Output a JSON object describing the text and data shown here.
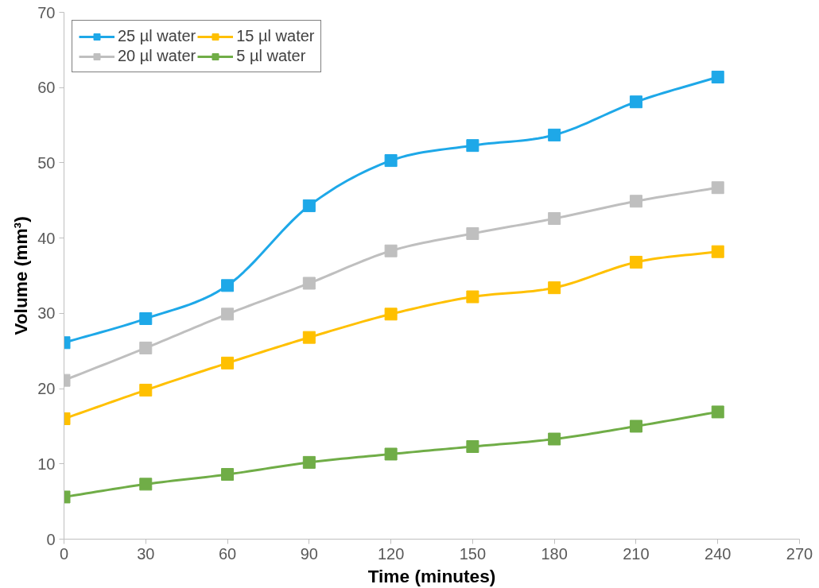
{
  "chart_data": {
    "type": "line",
    "xlabel": "Time (minutes)",
    "ylabel": "Volume (mm³)",
    "x": [
      0,
      30,
      60,
      90,
      120,
      150,
      180,
      210,
      240
    ],
    "series": [
      {
        "name": "25 µl water",
        "color": "#1ea8e8",
        "values": [
          26.1,
          29.3,
          33.7,
          44.3,
          50.3,
          52.3,
          53.7,
          58.1,
          61.4
        ]
      },
      {
        "name": "20 µl water",
        "color": "#bfbfbf",
        "values": [
          21.1,
          25.4,
          29.9,
          34.0,
          38.3,
          40.6,
          42.6,
          44.9,
          46.7
        ]
      },
      {
        "name": "15 µl water",
        "color": "#ffc000",
        "values": [
          16.0,
          19.8,
          23.4,
          26.8,
          29.9,
          32.2,
          33.4,
          36.8,
          38.2
        ]
      },
      {
        "name": "5 µl water",
        "color": "#70ad47",
        "values": [
          5.6,
          7.3,
          8.6,
          10.2,
          11.3,
          12.3,
          13.3,
          15.0,
          16.9
        ]
      }
    ],
    "xlim": [
      0,
      270
    ],
    "xticks": [
      0,
      30,
      60,
      90,
      120,
      150,
      180,
      210,
      240,
      270
    ],
    "ylim": [
      0,
      70
    ],
    "yticks": [
      0,
      10,
      20,
      30,
      40,
      50,
      60,
      70
    ],
    "grid": false,
    "legend": "top left",
    "marker": "square",
    "line_style": "solid"
  }
}
